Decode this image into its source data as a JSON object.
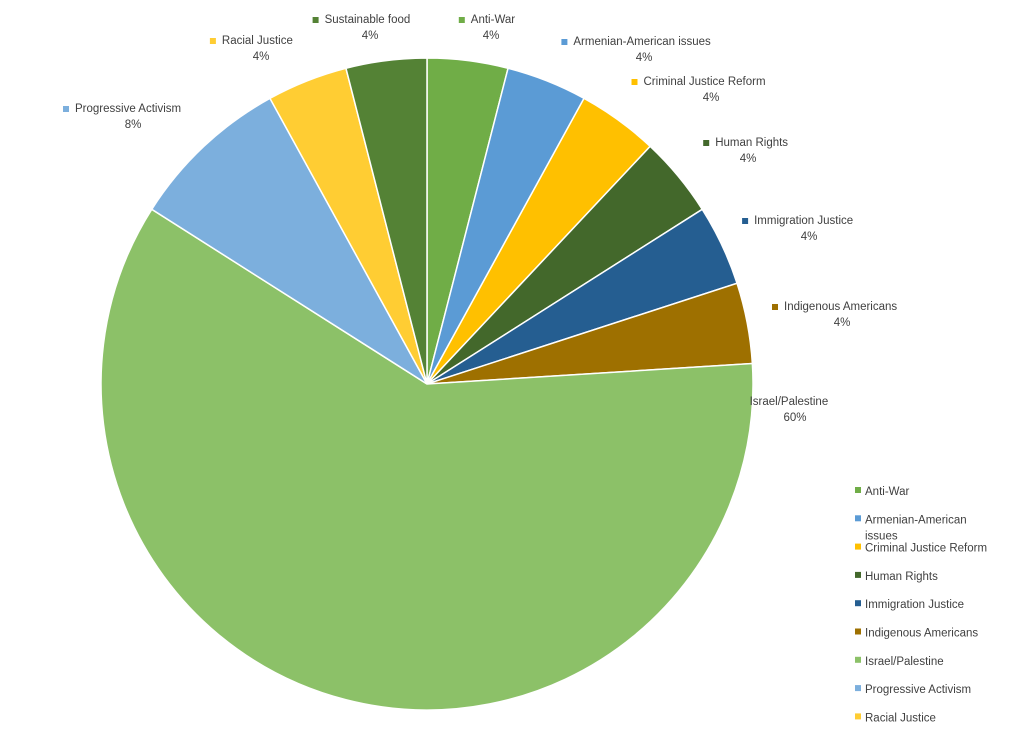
{
  "chart_data": {
    "type": "pie",
    "title": "",
    "slices": [
      {
        "label": "Anti-War",
        "value": 4,
        "display": "4%",
        "color": "#70ad47"
      },
      {
        "label": "Armenian-American issues",
        "value": 4,
        "display": "4%",
        "color": "#5b9bd5"
      },
      {
        "label": "Criminal Justice Reform",
        "value": 4,
        "display": "4%",
        "color": "#ffc000"
      },
      {
        "label": "Human Rights",
        "value": 4,
        "display": "4%",
        "color": "#43682b"
      },
      {
        "label": "Immigration Justice",
        "value": 4,
        "display": "4%",
        "color": "#255e91"
      },
      {
        "label": "Indigenous Americans",
        "value": 4,
        "display": "4%",
        "color": "#9e7000"
      },
      {
        "label": "Israel/Palestine",
        "value": 60,
        "display": "60%",
        "color": "#8cc168"
      },
      {
        "label": "Progressive Activism",
        "value": 8,
        "display": "8%",
        "color": "#7cafdd"
      },
      {
        "label": "Racial Justice",
        "value": 4,
        "display": "4%",
        "color": "#ffcd33"
      },
      {
        "label": "Sustainable food",
        "value": 4,
        "display": "4%",
        "color": "#548235"
      }
    ],
    "legend": {
      "position": "right",
      "entries": [
        "Anti-War",
        "Armenian-American issues",
        "Criminal Justice Reform",
        "Human Rights",
        "Immigration Justice",
        "Indigenous Americans",
        "Israel/Palestine",
        "Progressive Activism",
        "Racial Justice"
      ]
    }
  }
}
